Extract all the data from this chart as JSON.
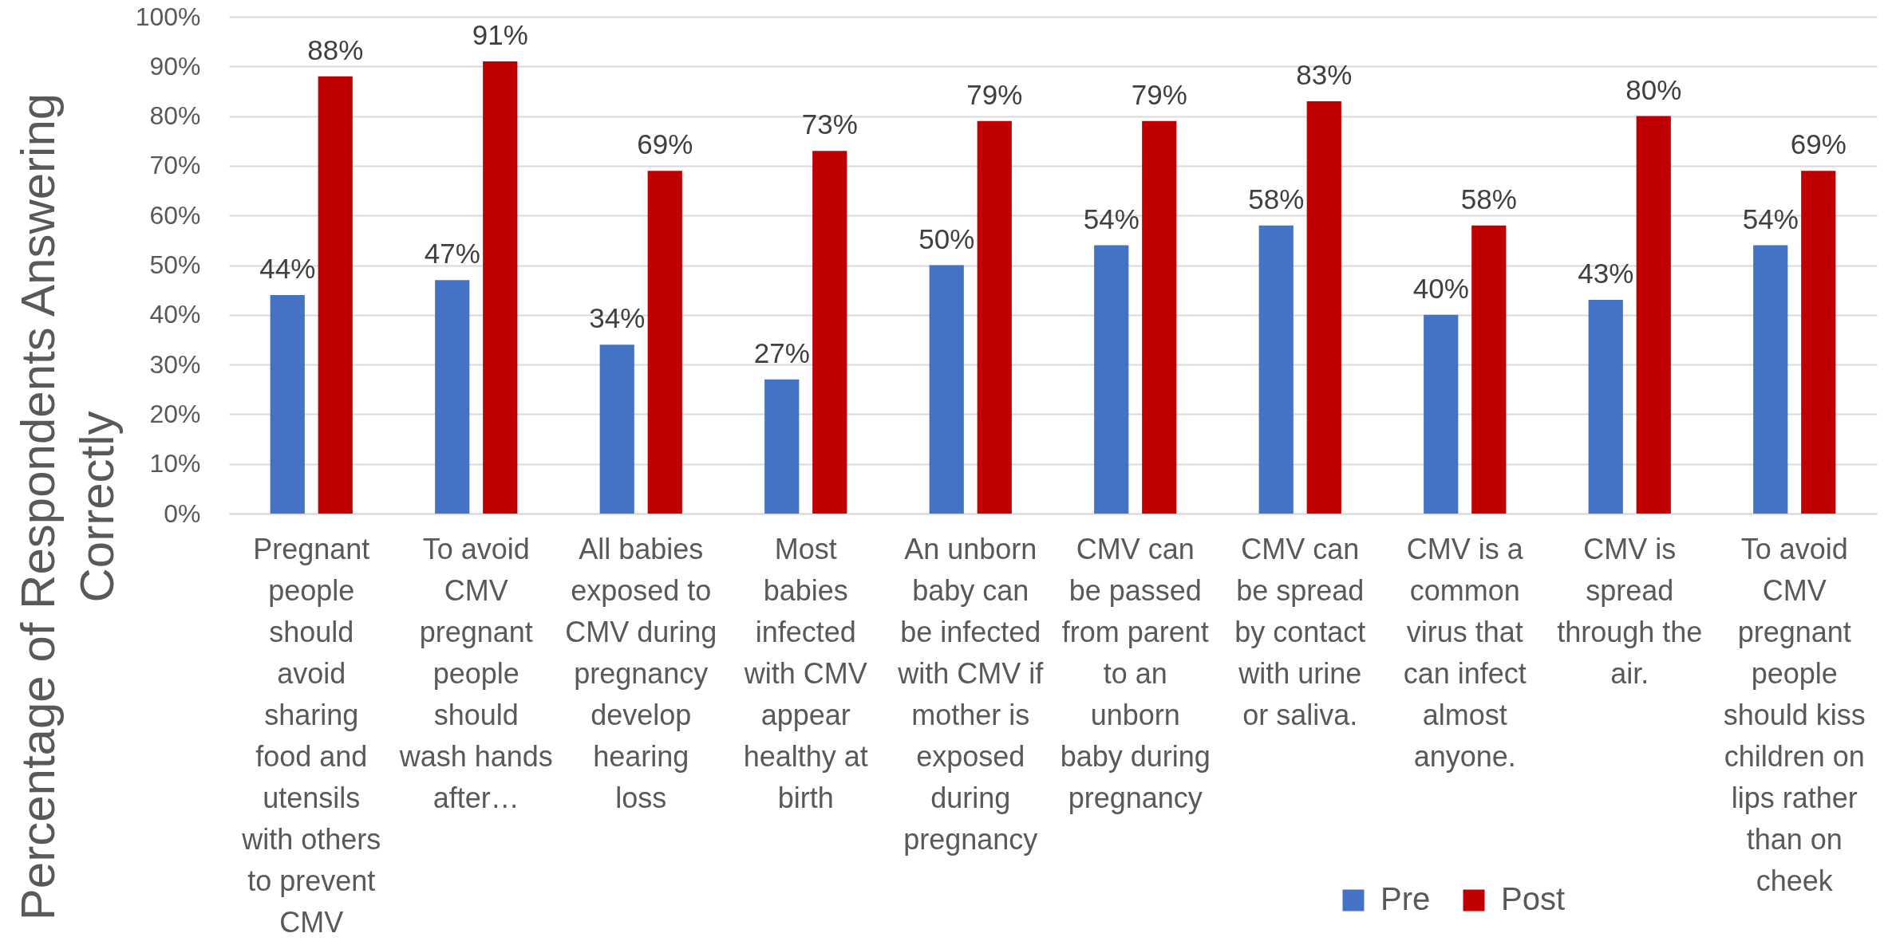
{
  "chart_data": {
    "type": "bar",
    "ylabel": "Percentage of Respondents Answering Correctly",
    "categories": [
      "Pregnant people should avoid sharing food and utensils with others to prevent CMV",
      "To avoid CMV pregnant people should wash hands after…",
      "All babies exposed to CMV during pregnancy develop hearing loss",
      "Most babies infected with CMV appear healthy at birth",
      "An unborn baby can be infected with CMV if mother is exposed during pregnancy",
      "CMV can be passed from parent to an unborn baby during pregnancy",
      "CMV can be spread by contact with urine or saliva.",
      "CMV is a common virus that can infect almost anyone.",
      "CMV is spread through the air.",
      "To avoid CMV pregnant people should kiss children on lips rather than on cheek"
    ],
    "series": [
      {
        "name": "Pre",
        "color": "#4472c4",
        "values": [
          44,
          47,
          34,
          27,
          50,
          54,
          58,
          40,
          43,
          54
        ],
        "value_labels": [
          "44%",
          "47%",
          "34%",
          "27%",
          "50%",
          "54%",
          "58%",
          "40%",
          "43%",
          "54%"
        ]
      },
      {
        "name": "Post",
        "color": "#c00000",
        "values": [
          88,
          91,
          69,
          73,
          79,
          79,
          83,
          58,
          80,
          69
        ],
        "value_labels": [
          "88%",
          "91%",
          "69%",
          "73%",
          "79%",
          "79%",
          "83%",
          "58%",
          "80%",
          "69%"
        ]
      }
    ],
    "ylim": [
      0,
      100
    ],
    "yticks": [
      {
        "value": 0,
        "label": "0%"
      },
      {
        "value": 10,
        "label": "10%"
      },
      {
        "value": 20,
        "label": "20%"
      },
      {
        "value": 30,
        "label": "30%"
      },
      {
        "value": 40,
        "label": "40%"
      },
      {
        "value": 50,
        "label": "50%"
      },
      {
        "value": 60,
        "label": "60%"
      },
      {
        "value": 70,
        "label": "70%"
      },
      {
        "value": 80,
        "label": "80%"
      },
      {
        "value": 90,
        "label": "90%"
      },
      {
        "value": 100,
        "label": "100%"
      }
    ],
    "grid": "y",
    "legend": "bottom"
  }
}
